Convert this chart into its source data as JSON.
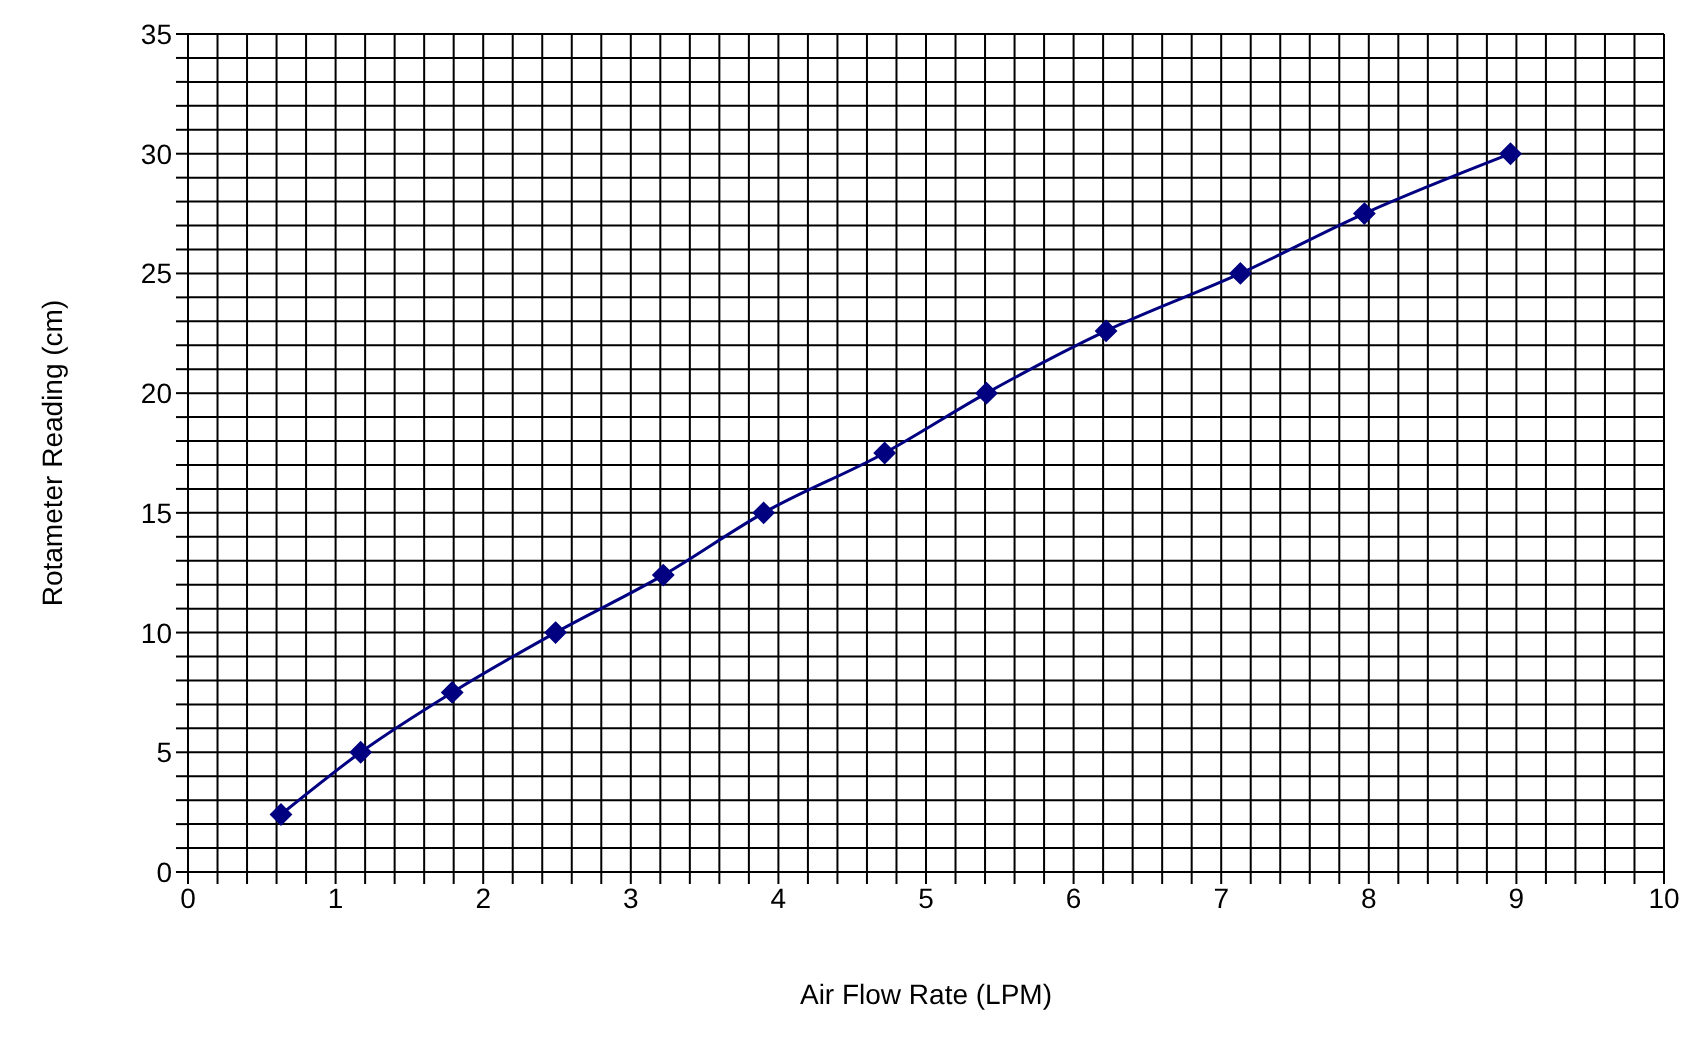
{
  "chart_data": {
    "type": "line",
    "xlabel": "Air Flow Rate (LPM)",
    "ylabel": "Rotameter Reading (cm)",
    "x": [
      0.63,
      1.17,
      1.79,
      2.49,
      3.22,
      3.9,
      4.72,
      5.41,
      6.22,
      7.13,
      7.97,
      8.96
    ],
    "series": [
      {
        "color": "#000080",
        "values": [
          2.4,
          5,
          7.5,
          10,
          12.4,
          15,
          17.5,
          20,
          22.6,
          25,
          27.5,
          30
        ]
      }
    ],
    "xlim": [
      0,
      10
    ],
    "xticks": [
      0,
      {
        "value": 0.2,
        "label": null
      },
      {
        "value": 0.4,
        "label": null
      },
      {
        "value": 0.6,
        "label": null
      },
      {
        "value": 0.8,
        "label": null
      },
      1,
      {
        "value": 1.2,
        "label": null
      },
      {
        "value": 1.4,
        "label": null
      },
      {
        "value": 1.6,
        "label": null
      },
      {
        "value": 1.8,
        "label": null
      },
      2,
      {
        "value": 2.2,
        "label": null
      },
      {
        "value": 2.4,
        "label": null
      },
      {
        "value": 2.6,
        "label": null
      },
      {
        "value": 2.8,
        "label": null
      },
      3,
      {
        "value": 3.2,
        "label": null
      },
      {
        "value": 3.4,
        "label": null
      },
      {
        "value": 3.6,
        "label": null
      },
      {
        "value": 3.8,
        "label": null
      },
      4,
      {
        "value": 4.2,
        "label": null
      },
      {
        "value": 4.4,
        "label": null
      },
      {
        "value": 4.6,
        "label": null
      },
      {
        "value": 4.8,
        "label": null
      },
      5,
      {
        "value": 5.2,
        "label": null
      },
      {
        "value": 5.4,
        "label": null
      },
      {
        "value": 5.6,
        "label": null
      },
      {
        "value": 5.8,
        "label": null
      },
      6,
      {
        "value": 6.2,
        "label": null
      },
      {
        "value": 6.4,
        "label": null
      },
      {
        "value": 6.6,
        "label": null
      },
      {
        "value": 6.8,
        "label": null
      },
      7,
      {
        "value": 7.2,
        "label": null
      },
      {
        "value": 7.4,
        "label": null
      },
      {
        "value": 7.6,
        "label": null
      },
      {
        "value": 7.8,
        "label": null
      },
      8,
      {
        "value": 8.2,
        "label": null
      },
      {
        "value": 8.4,
        "label": null
      },
      {
        "value": 8.6,
        "label": null
      },
      {
        "value": 8.8,
        "label": null
      },
      9,
      {
        "value": 9.2,
        "label": null
      },
      {
        "value": 9.4,
        "label": null
      },
      {
        "value": 9.6,
        "label": null
      },
      {
        "value": 9.8,
        "label": null
      },
      10
    ],
    "ylim": [
      0,
      35
    ],
    "yticks": [
      0,
      {
        "value": 1,
        "label": null
      },
      {
        "value": 2,
        "label": null
      },
      {
        "value": 3,
        "label": null
      },
      {
        "value": 4,
        "label": null
      },
      5,
      {
        "value": 6,
        "label": null
      },
      {
        "value": 7,
        "label": null
      },
      {
        "value": 8,
        "label": null
      },
      {
        "value": 9,
        "label": null
      },
      10,
      {
        "value": 11,
        "label": null
      },
      {
        "value": 12,
        "label": null
      },
      {
        "value": 13,
        "label": null
      },
      {
        "value": 14,
        "label": null
      },
      15,
      {
        "value": 16,
        "label": null
      },
      {
        "value": 17,
        "label": null
      },
      {
        "value": 18,
        "label": null
      },
      {
        "value": 19,
        "label": null
      },
      20,
      {
        "value": 21,
        "label": null
      },
      {
        "value": 22,
        "label": null
      },
      {
        "value": 23,
        "label": null
      },
      {
        "value": 24,
        "label": null
      },
      25,
      {
        "value": 26,
        "label": null
      },
      {
        "value": 27,
        "label": null
      },
      {
        "value": 28,
        "label": null
      },
      {
        "value": 29,
        "label": null
      },
      30,
      {
        "value": 31,
        "label": null
      },
      {
        "value": 32,
        "label": null
      },
      {
        "value": 33,
        "label": null
      },
      {
        "value": 34,
        "label": null
      },
      35
    ],
    "grid": true,
    "legend": false,
    "marker": "diamond",
    "line_style": "solid"
  }
}
